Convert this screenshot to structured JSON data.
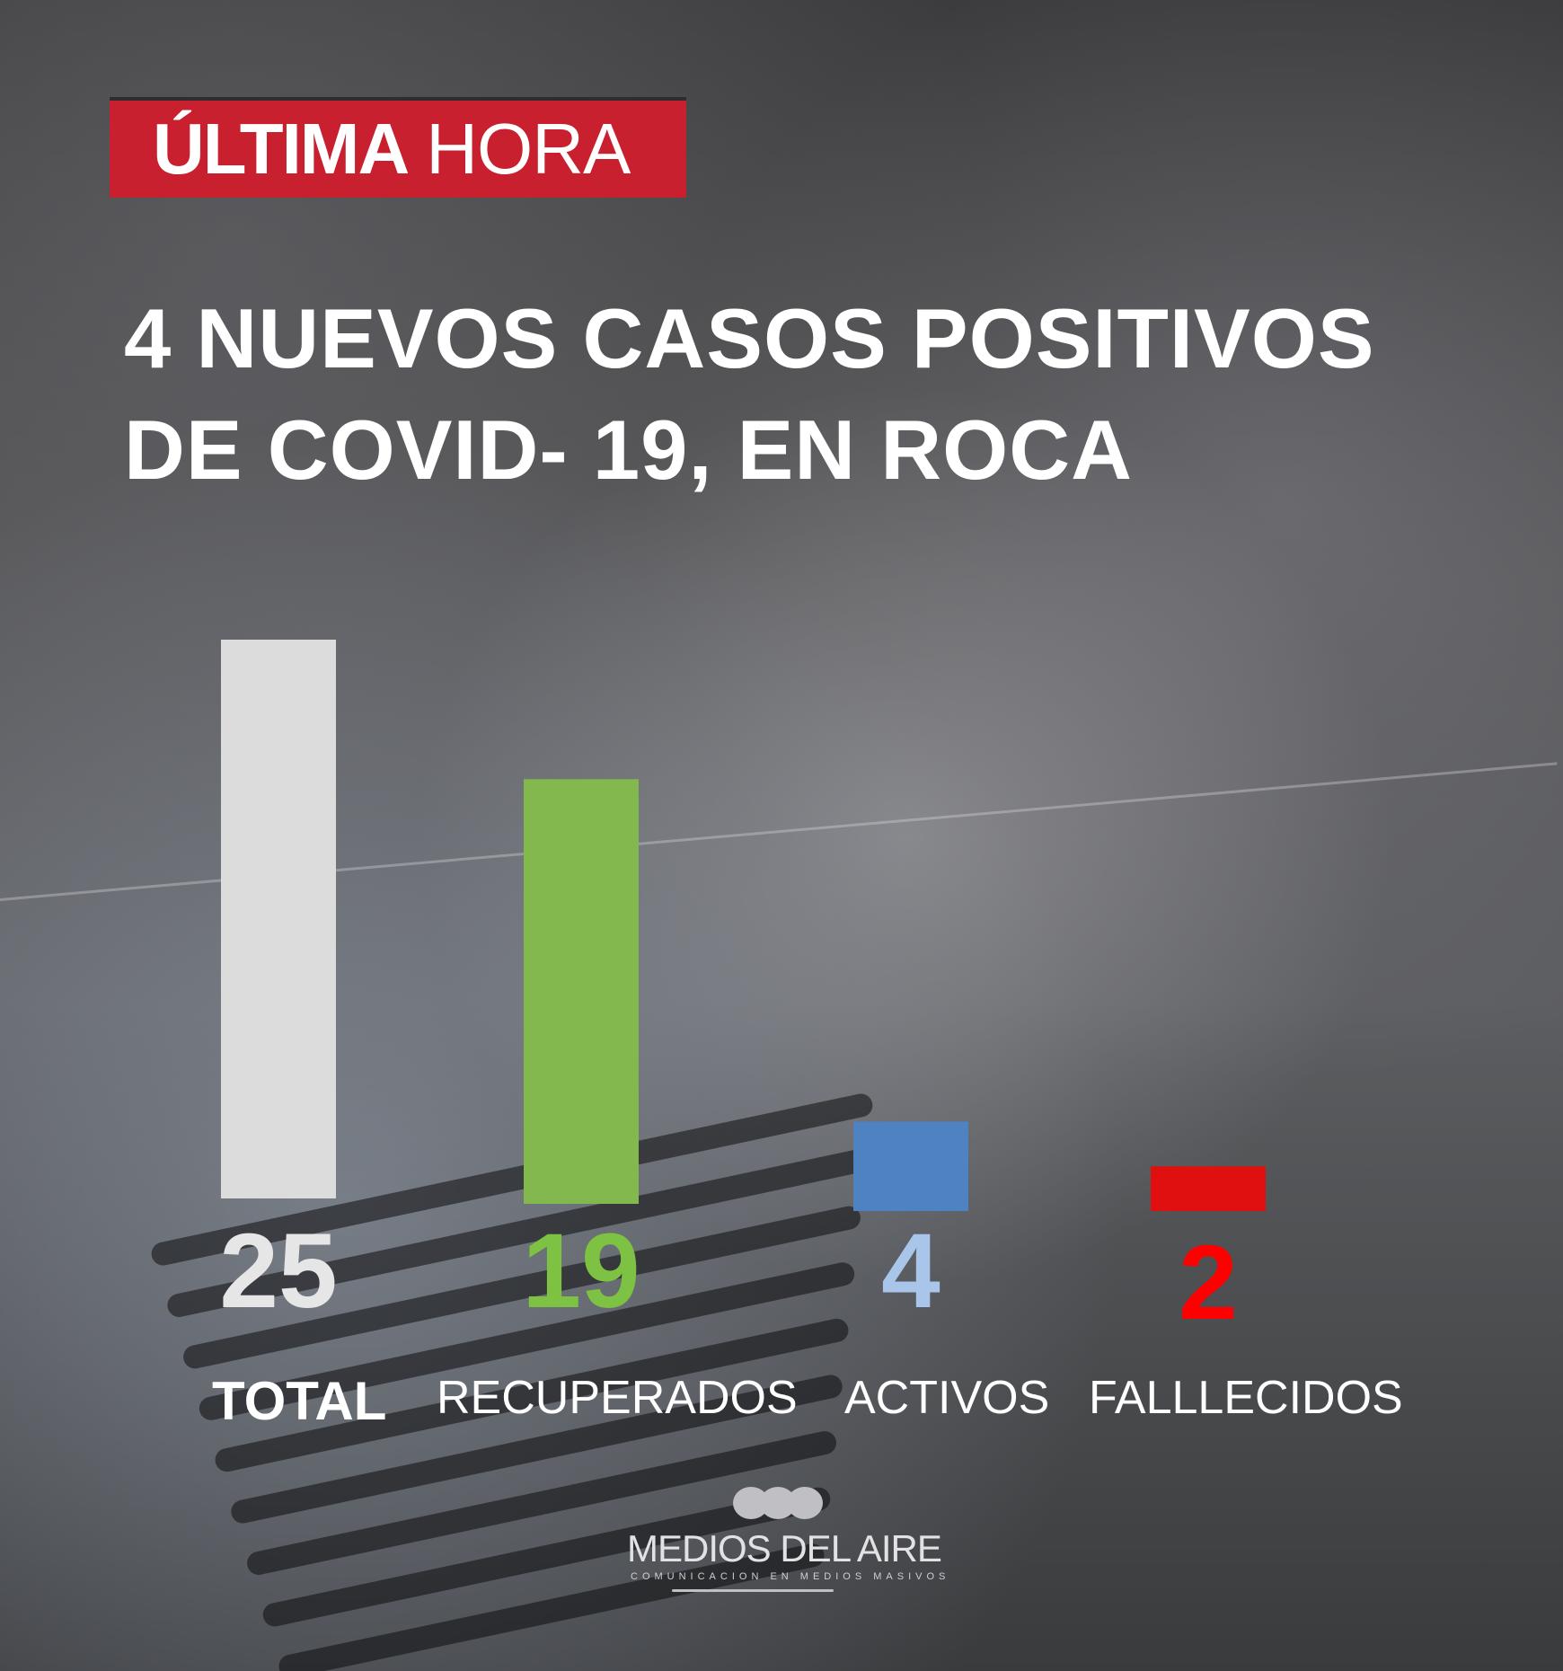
{
  "header": {
    "badge_bold": "ÚLTIMA",
    "badge_light": "HORA",
    "title_line1": "4 NUEVOS CASOS POSITIVOS",
    "title_line2": "DE COVID- 19, EN ROCA"
  },
  "chart_data": {
    "type": "bar",
    "title": "4 NUEVOS CASOS POSITIVOS DE COVID- 19, EN ROCA",
    "categories": [
      "TOTAL",
      "RECUPERADOS",
      "ACTIVOS",
      "FALLLECIDOS"
    ],
    "values": [
      25,
      19,
      4,
      2
    ],
    "value_labels": [
      "25",
      "19",
      "4",
      "2"
    ],
    "colors": [
      "#dcdcdc",
      "#82b84e",
      "#4f82c1",
      "#e01010"
    ],
    "label_colors": [
      "#e6e6e6",
      "#7dc242",
      "#a9c6ea",
      "#ff0000"
    ],
    "grid": false,
    "legend": "none"
  },
  "logo": {
    "name": "MEDIOS DEL AIRE",
    "tagline": "COMUNICACION EN MEDIOS MASIVOS",
    "color": "#bfbfc4"
  }
}
